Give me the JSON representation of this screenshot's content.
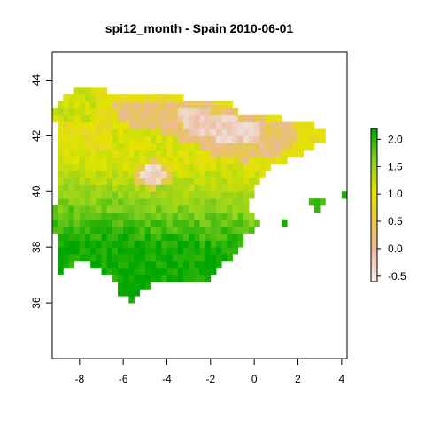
{
  "title": "spi12_month - Spain 2010-06-01",
  "chart_data": {
    "type": "heatmap",
    "title": "spi12_month - Spain 2010-06-01",
    "x_range": [
      -9.25,
      4.25
    ],
    "y_range": [
      34,
      45
    ],
    "cell_size_deg": 0.25,
    "x_ticks": [
      -8,
      -6,
      -4,
      -2,
      0,
      2,
      4
    ],
    "y_ticks": [
      36,
      38,
      40,
      42,
      44
    ],
    "x_tick_labels": [
      "-8",
      "-6",
      "-4",
      "-2",
      "0",
      "2",
      "4"
    ],
    "y_tick_labels": [
      "36",
      "38",
      "40",
      "42",
      "44"
    ],
    "grid": false,
    "legend": {
      "placement": "right",
      "range": [
        -0.6,
        2.2
      ],
      "ticks": [
        -0.5,
        0.0,
        0.5,
        1.0,
        1.5,
        2.0
      ],
      "tick_labels": [
        "-0.5",
        "0.0",
        "0.5",
        "1.0",
        "1.5",
        "2.0"
      ],
      "color_stops": [
        {
          "value": -0.6,
          "color": "#f2f2f2"
        },
        {
          "value": 0.0,
          "color": "#ecb99b"
        },
        {
          "value": 0.6,
          "color": "#e6cc3c"
        },
        {
          "value": 1.0,
          "color": "#e6e400"
        },
        {
          "value": 1.6,
          "color": "#8fd21e"
        },
        {
          "value": 2.2,
          "color": "#00a600"
        }
      ]
    },
    "regions": {
      "land": [
        [
          -8.0,
          43.7
        ],
        [
          -7.0,
          43.65
        ],
        [
          -5.0,
          43.4
        ],
        [
          -3.5,
          43.4
        ],
        [
          -2.0,
          43.3
        ],
        [
          -1.4,
          43.3
        ],
        [
          -0.5,
          42.8
        ],
        [
          0.7,
          42.8
        ],
        [
          2.0,
          42.45
        ],
        [
          3.3,
          42.3
        ],
        [
          3.2,
          41.9
        ],
        [
          2.3,
          41.4
        ],
        [
          1.0,
          41.0
        ],
        [
          0.4,
          40.5
        ],
        [
          0.0,
          40.0
        ],
        [
          -0.2,
          39.5
        ],
        [
          0.2,
          38.8
        ],
        [
          -0.4,
          38.4
        ],
        [
          -0.7,
          37.8
        ],
        [
          -1.3,
          37.5
        ],
        [
          -2.0,
          36.8
        ],
        [
          -3.3,
          36.7
        ],
        [
          -4.4,
          36.7
        ],
        [
          -5.0,
          36.5
        ],
        [
          -5.6,
          36.0
        ],
        [
          -6.2,
          36.4
        ],
        [
          -6.4,
          36.9
        ],
        [
          -7.3,
          37.2
        ],
        [
          -7.6,
          37.6
        ],
        [
          -7.9,
          37.6
        ],
        [
          -9.0,
          37.0
        ],
        [
          -8.9,
          38.0
        ],
        [
          -9.3,
          38.7
        ],
        [
          -9.0,
          40.0
        ],
        [
          -8.9,
          41.5
        ],
        [
          -8.9,
          42.0
        ],
        [
          -9.3,
          42.9
        ],
        [
          -8.8,
          43.4
        ]
      ],
      "balearic_mallorca": [
        [
          2.6,
          39.8
        ],
        [
          3.2,
          39.8
        ],
        [
          3.25,
          39.4
        ],
        [
          2.9,
          39.35
        ],
        [
          2.6,
          39.6
        ]
      ],
      "balearic_menorca": [
        [
          4.0,
          40.05
        ],
        [
          4.2,
          40.0
        ],
        [
          4.25,
          39.85
        ],
        [
          4.0,
          39.85
        ]
      ],
      "balearic_ibiza": [
        [
          1.3,
          39.05
        ],
        [
          1.6,
          39.1
        ],
        [
          1.6,
          38.85
        ],
        [
          1.3,
          38.85
        ]
      ],
      "low_spi_belt": [
        [
          -6.6,
          43.2
        ],
        [
          -5.0,
          43.3
        ],
        [
          -3.0,
          43.2
        ],
        [
          -1.5,
          43.1
        ],
        [
          0.0,
          42.7
        ],
        [
          1.8,
          42.4
        ],
        [
          2.0,
          41.7
        ],
        [
          1.0,
          41.3
        ],
        [
          -0.5,
          41.1
        ],
        [
          -1.5,
          41.2
        ],
        [
          -2.5,
          41.6
        ],
        [
          -4.5,
          42.2
        ],
        [
          -6.0,
          42.4
        ]
      ],
      "central_dry_patch": [
        [
          -5.6,
          40.9
        ],
        [
          -4.5,
          41.2
        ],
        [
          -3.7,
          41.0
        ],
        [
          -3.7,
          40.4
        ],
        [
          -4.5,
          40.1
        ],
        [
          -5.6,
          40.3
        ]
      ],
      "driest_core": [
        [
          -3.6,
          43.1
        ],
        [
          -1.5,
          42.8
        ],
        [
          0.2,
          42.4
        ],
        [
          0.4,
          41.6
        ],
        [
          -1.5,
          41.8
        ],
        [
          -3.2,
          42.2
        ]
      ]
    }
  }
}
